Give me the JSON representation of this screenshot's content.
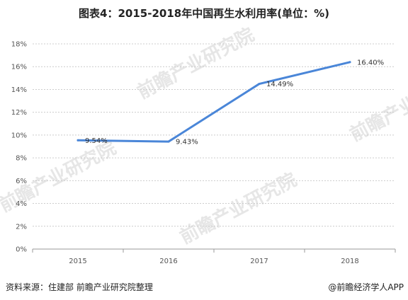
{
  "title": "图表4：2015-2018年中国再生水利用率(单位：%)",
  "footer": {
    "source": "资料来源：住建部 前瞻产业研究院整理",
    "brand": "@前瞻经济学人APP"
  },
  "watermark": "前瞻产业研究院",
  "colors": {
    "line": "#4a86d8",
    "grid": "#cccccc",
    "axis": "#999999"
  },
  "chart_data": {
    "type": "line",
    "categories": [
      "2015",
      "2016",
      "2017",
      "2018"
    ],
    "series": [
      {
        "values": [
          9.54,
          9.43,
          14.49,
          16.4
        ],
        "labels": [
          "9.54%",
          "9.43%",
          "14.49%",
          "16.40%"
        ]
      }
    ],
    "ylim": [
      0,
      18
    ],
    "yticks": [
      0,
      2,
      4,
      6,
      8,
      10,
      12,
      14,
      16,
      18
    ],
    "ytick_labels": [
      "0%",
      "2%",
      "4%",
      "6%",
      "8%",
      "10%",
      "12%",
      "14%",
      "16%",
      "18%"
    ],
    "grid": true,
    "legend": "none"
  }
}
